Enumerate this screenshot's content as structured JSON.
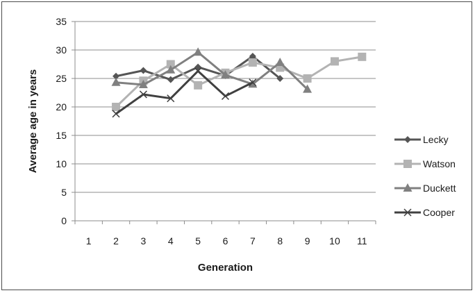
{
  "chart_data": {
    "type": "line",
    "xlabel": "Generation",
    "ylabel": "Average age in years",
    "categories": [
      "1",
      "2",
      "3",
      "4",
      "5",
      "6",
      "7",
      "8",
      "9",
      "10",
      "11"
    ],
    "ylim": [
      0,
      35
    ],
    "yticks": [
      "0",
      "5",
      "10",
      "15",
      "20",
      "25",
      "30",
      "35"
    ],
    "grid": "horizontal",
    "legend_position": "right",
    "series": [
      {
        "name": "Lecky",
        "color": "#555555",
        "marker": "diamond",
        "values": [
          null,
          25.4,
          26.4,
          24.8,
          27.0,
          25.5,
          28.9,
          25.0,
          null,
          null,
          null
        ]
      },
      {
        "name": "Watson",
        "color": "#b3b3b3",
        "marker": "square",
        "values": [
          null,
          20.0,
          24.6,
          27.5,
          23.8,
          26.0,
          27.8,
          26.9,
          25.0,
          28.0,
          28.8
        ]
      },
      {
        "name": "Duckett",
        "color": "#808080",
        "marker": "triangle",
        "values": [
          null,
          24.3,
          23.9,
          26.5,
          29.6,
          25.6,
          24.0,
          27.8,
          23.1,
          null,
          null
        ]
      },
      {
        "name": "Cooper",
        "color": "#404040",
        "marker": "x",
        "values": [
          null,
          18.8,
          22.2,
          21.5,
          26.3,
          21.9,
          24.3,
          null,
          null,
          null,
          null
        ]
      }
    ]
  }
}
